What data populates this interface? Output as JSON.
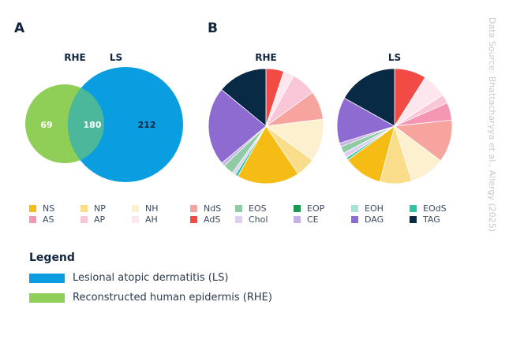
{
  "panels": {
    "a": "A",
    "b": "B"
  },
  "source": "Data Source: Bhattacharyya et al., Allergy (2025)",
  "venn": {
    "labels": {
      "rhe": "RHE",
      "ls": "LS"
    },
    "rhe_only": "69",
    "both": "180",
    "ls_only": "212",
    "colors": {
      "rhe": "#8fcf57",
      "ls": "#0a9de0",
      "overlap": "#4cb89b"
    }
  },
  "chart_data": [
    {
      "type": "pie",
      "title": "RHE",
      "slices": [
        {
          "label": "AdS",
          "value": 5
        },
        {
          "label": "AH",
          "value": 3
        },
        {
          "label": "AP",
          "value": 7
        },
        {
          "label": "NdS",
          "value": 8
        },
        {
          "label": "NH",
          "value": 12
        },
        {
          "label": "NP",
          "value": 5.5
        },
        {
          "label": "NS",
          "value": 17.5
        },
        {
          "label": "EOdS",
          "value": 0.8
        },
        {
          "label": "Chol",
          "value": 1
        },
        {
          "label": "EOS",
          "value": 3
        },
        {
          "label": "CE",
          "value": 1
        },
        {
          "label": "DAG",
          "value": 22
        },
        {
          "label": "TAG",
          "value": 14
        }
      ]
    },
    {
      "type": "pie",
      "title": "LS",
      "slices": [
        {
          "label": "AdS",
          "value": 9
        },
        {
          "label": "AH",
          "value": 7
        },
        {
          "label": "AP",
          "value": 2.5
        },
        {
          "label": "AS",
          "value": 5
        },
        {
          "label": "NdS",
          "value": 12
        },
        {
          "label": "NH",
          "value": 10
        },
        {
          "label": "NP",
          "value": 9
        },
        {
          "label": "NS",
          "value": 11
        },
        {
          "label": "EOdS",
          "value": 0.7
        },
        {
          "label": "Chol",
          "value": 1.5
        },
        {
          "label": "EOS",
          "value": 2
        },
        {
          "label": "CE",
          "value": 1
        },
        {
          "label": "DAG",
          "value": 13
        },
        {
          "label": "TAG",
          "value": 17
        }
      ]
    }
  ],
  "categories": [
    {
      "label": "NS",
      "color": "#f5bc15"
    },
    {
      "label": "NP",
      "color": "#f9dd8a"
    },
    {
      "label": "NH",
      "color": "#fdf0cf"
    },
    {
      "label": "NdS",
      "color": "#f7a49e"
    },
    {
      "label": "EOS",
      "color": "#8fcba4"
    },
    {
      "label": "EOP",
      "color": "#1a9850"
    },
    {
      "label": "EOH",
      "color": "#a3e4d7"
    },
    {
      "label": "EOdS",
      "color": "#2ec4a8"
    },
    {
      "label": "AS",
      "color": "#f596b3"
    },
    {
      "label": "AP",
      "color": "#f9c6d7"
    },
    {
      "label": "AH",
      "color": "#fde6ee"
    },
    {
      "label": "AdS",
      "color": "#f24a44"
    },
    {
      "label": "Chol",
      "color": "#ddd0ef"
    },
    {
      "label": "CE",
      "color": "#c5b1e6"
    },
    {
      "label": "DAG",
      "color": "#8e6bd0"
    },
    {
      "label": "TAG",
      "color": "#082a45"
    }
  ],
  "legend": {
    "title": "Legend",
    "items": [
      {
        "label": "Lesional atopic dermatitis (LS)",
        "color": "#0a9de0"
      },
      {
        "label": "Reconstructed human epidermis (RHE)",
        "color": "#8fcf57"
      }
    ]
  }
}
